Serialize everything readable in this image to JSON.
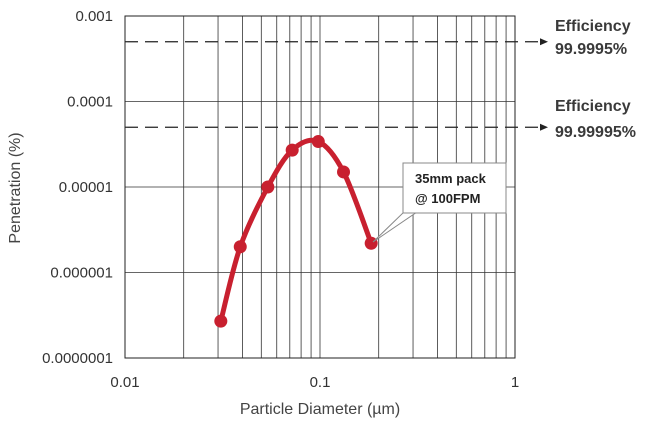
{
  "chart_data": {
    "type": "line",
    "xlabel": "Particle Diameter (µm)",
    "ylabel": "Penetration (%)",
    "x_scale": "log",
    "y_scale": "log",
    "xlim": [
      0.01,
      1
    ],
    "ylim": [
      1e-07,
      0.001
    ],
    "x_ticks": [
      "0.01",
      "0.1",
      "1"
    ],
    "y_ticks": [
      "0.001",
      "0.0001",
      "0.00001",
      "0.000001",
      "0.0000001"
    ],
    "grid": true,
    "series": [
      {
        "color": "#c8202f",
        "x": [
          0.031,
          0.039,
          0.054,
          0.072,
          0.098,
          0.132,
          0.183
        ],
        "y": [
          2.7e-07,
          2e-06,
          1e-05,
          2.7e-05,
          3.4e-05,
          1.5e-05,
          2.2e-06
        ]
      }
    ],
    "reference_lines": [
      {
        "y": 0.0005,
        "label_line1": "Efficiency",
        "label_line2": "99.9995%"
      },
      {
        "y": 5e-05,
        "label_line1": "Efficiency",
        "label_line2": "99.99995%"
      }
    ],
    "callout": {
      "line1": "35mm pack",
      "line2": "@ 100FPM"
    }
  }
}
